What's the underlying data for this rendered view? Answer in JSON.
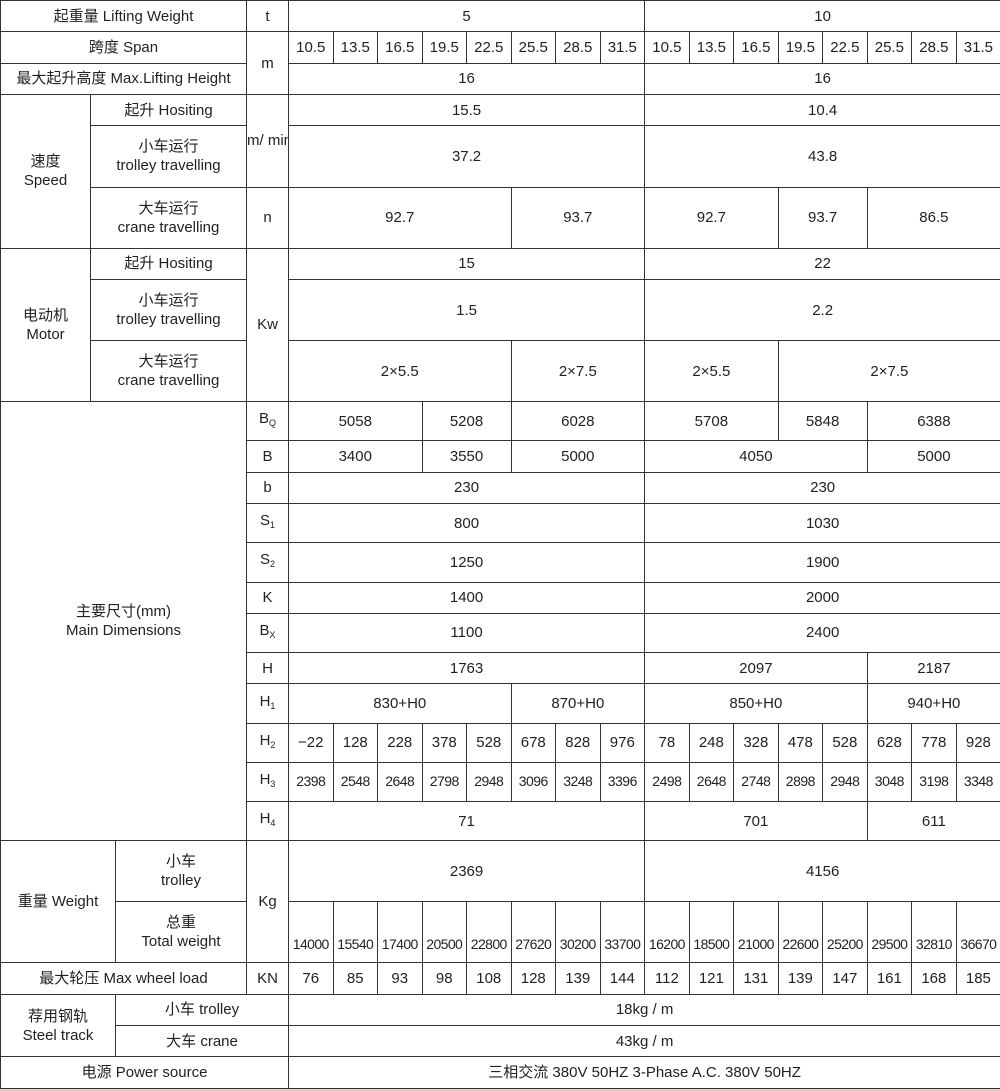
{
  "rows": [
    {
      "label": "起重量 Lifting Weight",
      "unit": "t",
      "values": [
        {
          "t": "5",
          "span": 8
        },
        {
          "t": "10",
          "span": 8
        }
      ]
    },
    {
      "label": "跨度 Span",
      "unit": "m",
      "values": [
        {
          "t": "10.5"
        },
        {
          "t": "13.5"
        },
        {
          "t": "16.5"
        },
        {
          "t": "19.5"
        },
        {
          "t": "22.5"
        },
        {
          "t": "25.5"
        },
        {
          "t": "28.5"
        },
        {
          "t": "31.5"
        },
        {
          "t": "10.5"
        },
        {
          "t": "13.5"
        },
        {
          "t": "16.5"
        },
        {
          "t": "19.5"
        },
        {
          "t": "22.5"
        },
        {
          "t": "25.5"
        },
        {
          "t": "28.5"
        },
        {
          "t": "31.5"
        }
      ]
    },
    {
      "label": "最大起升高度 Max.Lifting Height",
      "values": [
        {
          "t": "16",
          "span": 8
        },
        {
          "t": "16",
          "span": 8
        }
      ]
    },
    {
      "group": "速度",
      "group_en": "Speed",
      "sub": "起升 Hositing",
      "unit": "m/ min",
      "values": [
        {
          "t": "15.5",
          "span": 8
        },
        {
          "t": "10.4",
          "span": 8
        }
      ]
    },
    {
      "sub": "小车运行",
      "sub_en": "trolley travelling",
      "values": [
        {
          "t": "37.2",
          "span": 8
        },
        {
          "t": "43.8",
          "span": 8
        }
      ]
    },
    {
      "sub": "大车运行",
      "sub_en": "crane travelling",
      "unit": "n",
      "values": [
        {
          "t": "92.7",
          "span": 5
        },
        {
          "t": "93.7",
          "span": 3
        },
        {
          "t": "92.7",
          "span": 3
        },
        {
          "t": "93.7",
          "span": 2
        },
        {
          "t": "86.5",
          "span": 3
        }
      ]
    },
    {
      "group": "电动机",
      "group_en": "Motor",
      "sub": "起升 Hositing",
      "unit": "Kw",
      "values": [
        {
          "t": "15",
          "span": 8
        },
        {
          "t": "22",
          "span": 8
        }
      ]
    },
    {
      "sub": "小车运行",
      "sub_en": "trolley travelling",
      "values": [
        {
          "t": "1.5",
          "span": 8
        },
        {
          "t": "2.2",
          "span": 8
        }
      ]
    },
    {
      "sub": "大车运行",
      "sub_en": "crane travelling",
      "values": [
        {
          "t": "2×5.5",
          "span": 5
        },
        {
          "t": "2×7.5",
          "span": 3
        },
        {
          "t": "2×5.5",
          "span": 3
        },
        {
          "t": "2×7.5",
          "span": 5
        }
      ]
    },
    {
      "group": "主要尺寸(mm)",
      "group_en": "Main Dimensions",
      "dim": "B",
      "dim_sub": "Q",
      "values": [
        {
          "t": "5058",
          "span": 3
        },
        {
          "t": "5208",
          "span": 2
        },
        {
          "t": "6028",
          "span": 3
        },
        {
          "t": "5708",
          "span": 3
        },
        {
          "t": "5848",
          "span": 2
        },
        {
          "t": "6388",
          "span": 3
        }
      ]
    },
    {
      "dim": "B",
      "values": [
        {
          "t": "3400",
          "span": 3
        },
        {
          "t": "3550",
          "span": 2
        },
        {
          "t": "5000",
          "span": 3
        },
        {
          "t": "4050",
          "span": 5
        },
        {
          "t": "5000",
          "span": 3
        }
      ]
    },
    {
      "dim": "b",
      "values": [
        {
          "t": "230",
          "span": 8
        },
        {
          "t": "230",
          "span": 8
        }
      ]
    },
    {
      "dim": "S",
      "dim_sub": "1",
      "values": [
        {
          "t": "800",
          "span": 8
        },
        {
          "t": "1030",
          "span": 8
        }
      ]
    },
    {
      "dim": "S",
      "dim_sub": "2",
      "values": [
        {
          "t": "1250",
          "span": 8
        },
        {
          "t": "1900",
          "span": 8
        }
      ]
    },
    {
      "dim": "K",
      "values": [
        {
          "t": "1400",
          "span": 8
        },
        {
          "t": "2000",
          "span": 8
        }
      ]
    },
    {
      "dim": "B",
      "dim_sub": "X",
      "values": [
        {
          "t": "1100",
          "span": 8
        },
        {
          "t": "2400",
          "span": 8
        }
      ]
    },
    {
      "dim": "H",
      "values": [
        {
          "t": "1763",
          "span": 8
        },
        {
          "t": "2097",
          "span": 5
        },
        {
          "t": "2187",
          "span": 3
        }
      ]
    },
    {
      "dim": "H",
      "dim_sub": "1",
      "values": [
        {
          "t": "830+H0",
          "span": 5
        },
        {
          "t": "870+H0",
          "span": 3
        },
        {
          "t": "850+H0",
          "span": 5
        },
        {
          "t": "940+H0",
          "span": 3
        }
      ]
    },
    {
      "dim": "H",
      "dim_sub": "2",
      "values": [
        {
          "t": "−22"
        },
        {
          "t": "128"
        },
        {
          "t": "228"
        },
        {
          "t": "378"
        },
        {
          "t": "528"
        },
        {
          "t": "678"
        },
        {
          "t": "828"
        },
        {
          "t": "976"
        },
        {
          "t": "78"
        },
        {
          "t": "248"
        },
        {
          "t": "328"
        },
        {
          "t": "478"
        },
        {
          "t": "528"
        },
        {
          "t": "628"
        },
        {
          "t": "778"
        },
        {
          "t": "928"
        }
      ]
    },
    {
      "dim": "H",
      "dim_sub": "3",
      "values": [
        {
          "t": "2398"
        },
        {
          "t": "2548"
        },
        {
          "t": "2648"
        },
        {
          "t": "2798"
        },
        {
          "t": "2948"
        },
        {
          "t": "3096"
        },
        {
          "t": "3248"
        },
        {
          "t": "3396"
        },
        {
          "t": "2498"
        },
        {
          "t": "2648"
        },
        {
          "t": "2748"
        },
        {
          "t": "2898"
        },
        {
          "t": "2948"
        },
        {
          "t": "3048"
        },
        {
          "t": "3198"
        },
        {
          "t": "3348"
        }
      ]
    },
    {
      "dim": "H",
      "dim_sub": "4",
      "values": [
        {
          "t": "71",
          "span": 8
        },
        {
          "t": "701",
          "span": 5
        },
        {
          "t": "611",
          "span": 3
        }
      ]
    },
    {
      "group": "重量 Weight",
      "sub": "小车",
      "sub_en": "trolley",
      "unit": "Kg",
      "values": [
        {
          "t": "2369",
          "span": 8
        },
        {
          "t": "4156",
          "span": 8
        }
      ]
    },
    {
      "sub": "总重",
      "sub_en": "Total weight",
      "values": [
        {
          "t": "14000"
        },
        {
          "t": "15540"
        },
        {
          "t": "17400"
        },
        {
          "t": "20500"
        },
        {
          "t": "22800"
        },
        {
          "t": "27620"
        },
        {
          "t": "30200"
        },
        {
          "t": "33700"
        },
        {
          "t": "16200"
        },
        {
          "t": "18500"
        },
        {
          "t": "21000"
        },
        {
          "t": "22600"
        },
        {
          "t": "25200"
        },
        {
          "t": "29500"
        },
        {
          "t": "32810"
        },
        {
          "t": "36670"
        }
      ]
    },
    {
      "label": "最大轮压 Max wheel load",
      "unit": "KN",
      "values": [
        {
          "t": "76"
        },
        {
          "t": "85"
        },
        {
          "t": "93"
        },
        {
          "t": "98"
        },
        {
          "t": "108"
        },
        {
          "t": "128"
        },
        {
          "t": "139"
        },
        {
          "t": "144"
        },
        {
          "t": "112"
        },
        {
          "t": "121"
        },
        {
          "t": "131"
        },
        {
          "t": "139"
        },
        {
          "t": "147"
        },
        {
          "t": "161"
        },
        {
          "t": "168"
        },
        {
          "t": "185"
        }
      ]
    },
    {
      "group": "荐用钢轨",
      "group_en": "Steel track",
      "sub": "小车 trolley",
      "values": [
        {
          "t": "18kg / m",
          "span": 16
        }
      ]
    },
    {
      "sub": "大车 crane",
      "values": [
        {
          "t": "43kg / m",
          "span": 16
        }
      ]
    },
    {
      "label": "电源 Power source",
      "values": [
        {
          "t": "三相交流 380V  50HZ   3-Phase A.C.  380V  50HZ",
          "span": 16
        }
      ]
    }
  ]
}
